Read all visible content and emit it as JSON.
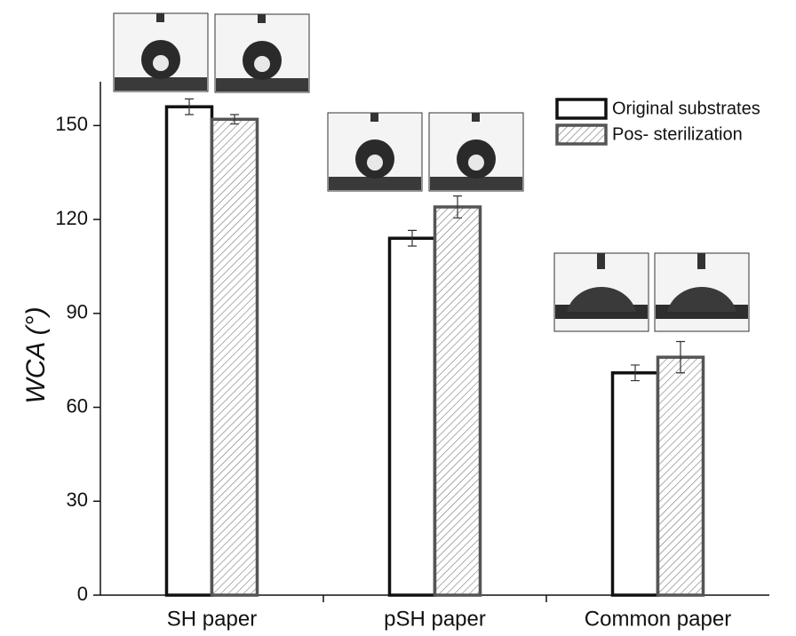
{
  "chart_data": {
    "type": "bar",
    "y_label": "WCA (°)",
    "categories": [
      "SH paper",
      "pSH paper",
      "Common paper"
    ],
    "series": [
      {
        "name": "Original substrates",
        "color": "#111111",
        "values": [
          156,
          114,
          71
        ],
        "errors": [
          2.5,
          2.5,
          2.5
        ]
      },
      {
        "name": "Pos- sterilization",
        "color": "#555555",
        "values": [
          152,
          124,
          76
        ],
        "errors": [
          1.5,
          3.5,
          5
        ]
      }
    ],
    "ylim": [
      0,
      164
    ],
    "yticks": [
      0,
      30,
      60,
      90,
      120,
      150
    ],
    "legend": "upper right"
  }
}
